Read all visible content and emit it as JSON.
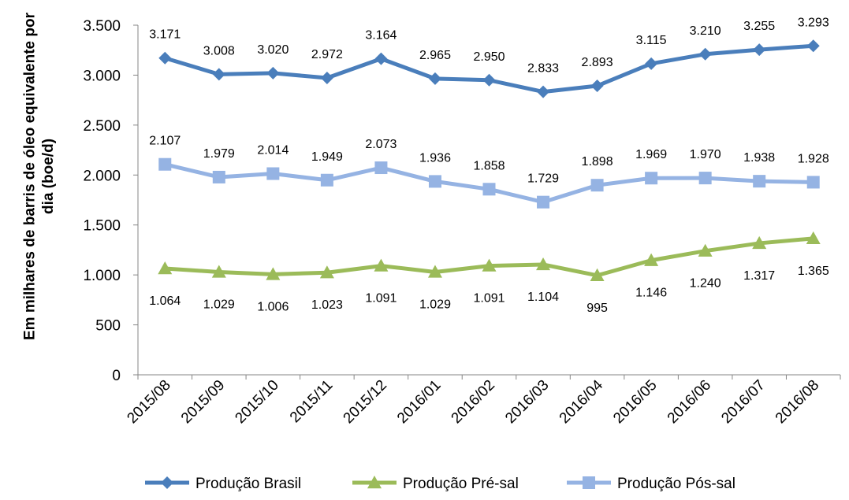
{
  "chart_data": {
    "type": "line",
    "title": "",
    "xlabel": "",
    "ylabel": "Em milhares de barris de óleo equivalente por dia (boe/d)",
    "ylim": [
      0,
      3500
    ],
    "yticks": [
      0,
      500,
      1000,
      1500,
      2000,
      2500,
      3000,
      3500
    ],
    "ytick_labels": [
      "0",
      "500",
      "1.000",
      "1.500",
      "2.000",
      "2.500",
      "3.000",
      "3.500"
    ],
    "grid": false,
    "legend_position": "bottom",
    "categories": [
      "2015/08",
      "2015/09",
      "2015/10",
      "2015/11",
      "2015/12",
      "2016/01",
      "2016/02",
      "2016/03",
      "2016/04",
      "2016/05",
      "2016/06",
      "2016/07",
      "2016/08"
    ],
    "series": [
      {
        "name": "Produção Brasil",
        "color": "#4a7ebb",
        "marker": "diamond",
        "label_position": "above",
        "values": [
          3171,
          3008,
          3020,
          2972,
          3164,
          2965,
          2950,
          2833,
          2893,
          3115,
          3210,
          3255,
          3293
        ],
        "labels": [
          "3.171",
          "3.008",
          "3.020",
          "2.972",
          "3.164",
          "2.965",
          "2.950",
          "2.833",
          "2.893",
          "3.115",
          "3.210",
          "3.255",
          "3.293"
        ]
      },
      {
        "name": "Produção Pré-sal",
        "color": "#9bbb59",
        "marker": "triangle",
        "label_position": "below",
        "values": [
          1064,
          1029,
          1006,
          1023,
          1091,
          1029,
          1091,
          1104,
          995,
          1146,
          1240,
          1317,
          1365
        ],
        "labels": [
          "1.064",
          "1.029",
          "1.006",
          "1.023",
          "1.091",
          "1.029",
          "1.091",
          "1.104",
          "995",
          "1.146",
          "1.240",
          "1.317",
          "1.365"
        ]
      },
      {
        "name": "Produção Pós-sal",
        "color": "#95b3e3",
        "marker": "square",
        "label_position": "above",
        "values": [
          2107,
          1979,
          2014,
          1949,
          2073,
          1936,
          1858,
          1729,
          1898,
          1969,
          1970,
          1938,
          1928
        ],
        "labels": [
          "2.107",
          "1.979",
          "2.014",
          "1.949",
          "2.073",
          "1.936",
          "1.858",
          "1.729",
          "1.898",
          "1.969",
          "1.970",
          "1.938",
          "1.928"
        ]
      }
    ]
  }
}
